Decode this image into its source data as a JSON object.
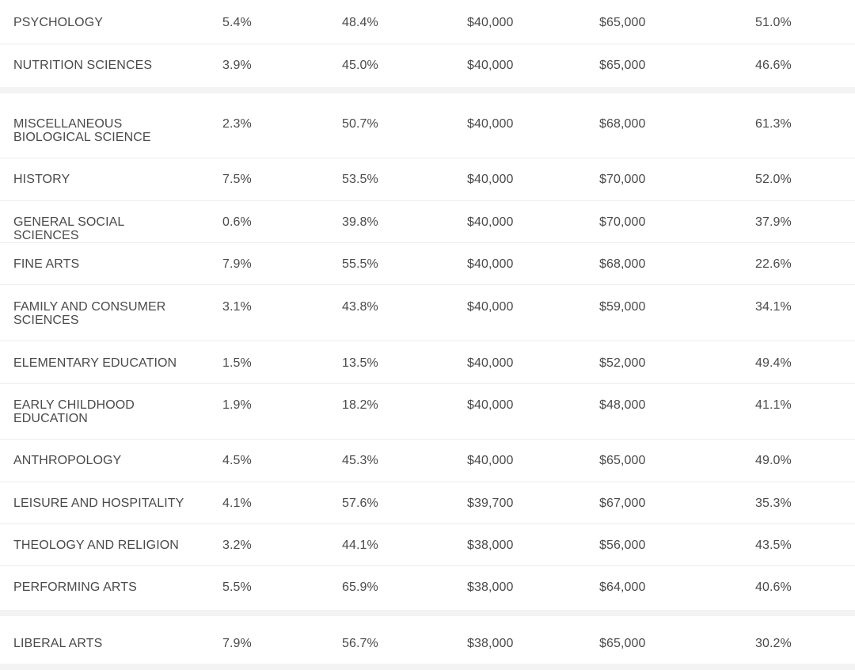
{
  "rows": [
    {
      "major": "PSYCHOLOGY",
      "unemployment": "5.4%",
      "underemployment": "48.4%",
      "early_career": "$40,000",
      "mid_career": "$65,000",
      "graduate": "51.0%"
    },
    {
      "major": "NUTRITION SCIENCES",
      "unemployment": "3.9%",
      "underemployment": "45.0%",
      "early_career": "$40,000",
      "mid_career": "$65,000",
      "graduate": "46.6%"
    },
    {
      "major": "MISCELLANEOUS BIOLOGICAL SCIENCE",
      "unemployment": "2.3%",
      "underemployment": "50.7%",
      "early_career": "$40,000",
      "mid_career": "$68,000",
      "graduate": "61.3%"
    },
    {
      "major": "HISTORY",
      "unemployment": "7.5%",
      "underemployment": "53.5%",
      "early_career": "$40,000",
      "mid_career": "$70,000",
      "graduate": "52.0%"
    },
    {
      "major": "GENERAL SOCIAL SCIENCES",
      "unemployment": "0.6%",
      "underemployment": "39.8%",
      "early_career": "$40,000",
      "mid_career": "$70,000",
      "graduate": "37.9%"
    },
    {
      "major": "FINE ARTS",
      "unemployment": "7.9%",
      "underemployment": "55.5%",
      "early_career": "$40,000",
      "mid_career": "$68,000",
      "graduate": "22.6%"
    },
    {
      "major": "FAMILY AND CONSUMER SCIENCES",
      "unemployment": "3.1%",
      "underemployment": "43.8%",
      "early_career": "$40,000",
      "mid_career": "$59,000",
      "graduate": "34.1%"
    },
    {
      "major": "ELEMENTARY EDUCATION",
      "unemployment": "1.5%",
      "underemployment": "13.5%",
      "early_career": "$40,000",
      "mid_career": "$52,000",
      "graduate": "49.4%"
    },
    {
      "major": "EARLY CHILDHOOD EDUCATION",
      "unemployment": "1.9%",
      "underemployment": "18.2%",
      "early_career": "$40,000",
      "mid_career": "$48,000",
      "graduate": "41.1%"
    },
    {
      "major": "ANTHROPOLOGY",
      "unemployment": "4.5%",
      "underemployment": "45.3%",
      "early_career": "$40,000",
      "mid_career": "$65,000",
      "graduate": "49.0%"
    },
    {
      "major": "LEISURE AND HOSPITALITY",
      "unemployment": "4.1%",
      "underemployment": "57.6%",
      "early_career": "$39,700",
      "mid_career": "$67,000",
      "graduate": "35.3%"
    },
    {
      "major": "THEOLOGY AND RELIGION",
      "unemployment": "3.2%",
      "underemployment": "44.1%",
      "early_career": "$38,000",
      "mid_career": "$56,000",
      "graduate": "43.5%"
    },
    {
      "major": "PERFORMING ARTS",
      "unemployment": "5.5%",
      "underemployment": "65.9%",
      "early_career": "$38,000",
      "mid_career": "$64,000",
      "graduate": "40.6%"
    },
    {
      "major": "LIBERAL ARTS",
      "unemployment": "7.9%",
      "underemployment": "56.7%",
      "early_career": "$38,000",
      "mid_career": "$65,000",
      "graduate": "30.2%"
    }
  ]
}
